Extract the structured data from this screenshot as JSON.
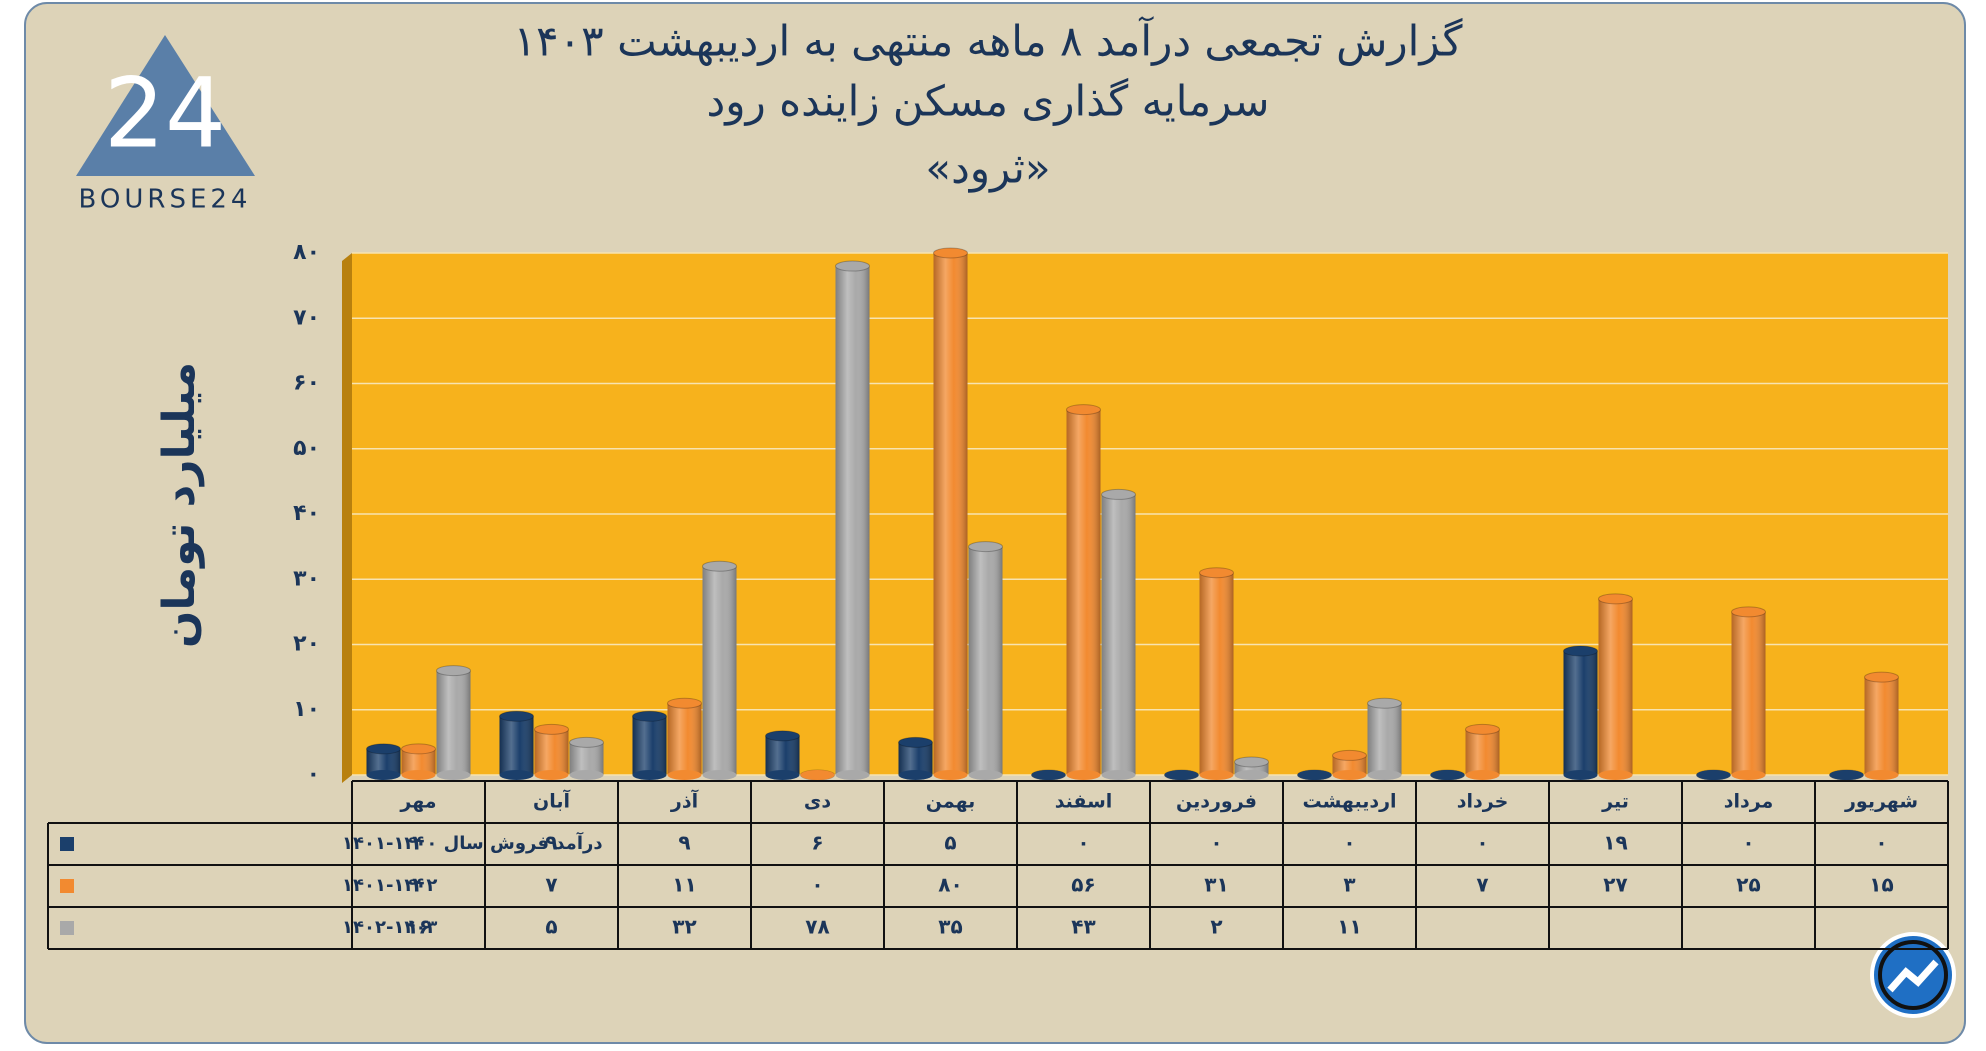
{
  "logo_text": "BOURSE24",
  "chart_data": {
    "type": "bar",
    "title": "گزارش تجمعی درآمد ۸ ماهه منتهی به اردیبهشت ۱۴۰۳",
    "subtitle": "سرمایه گذاری مسکن زاینده رود",
    "company": "«ثرود»",
    "y_label": "میلیارد تومان",
    "categories": [
      "مهر",
      "آبان",
      "آذر",
      "دی",
      "بهمن",
      "اسفند",
      "فروردین",
      "اردیبهشت",
      "خرداد",
      "تیر",
      "مرداد",
      "شهریور"
    ],
    "series": [
      {
        "name": "درآمد فروش سال ۱۴۰۰-۱۴۰۱",
        "color": "#1b3f6b",
        "values": [
          4,
          9,
          9,
          6,
          5,
          0,
          0,
          0,
          0,
          19,
          0,
          0
        ],
        "value_labels": [
          "۴",
          "۹",
          "۹",
          "۶",
          "۵",
          "۰",
          "۰",
          "۰",
          "۰",
          "۱۹",
          "۰",
          "۰"
        ]
      },
      {
        "name": "۱۴۰۱-۱۴۰۲",
        "color": "#f28a30",
        "values": [
          4,
          7,
          11,
          0,
          80,
          56,
          31,
          3,
          7,
          27,
          25,
          15
        ],
        "value_labels": [
          "۴",
          "۷",
          "۱۱",
          "۰",
          "۸۰",
          "۵۶",
          "۳۱",
          "۳",
          "۷",
          "۲۷",
          "۲۵",
          "۱۵"
        ]
      },
      {
        "name": "۱۴۰۲-۱۴۰۳",
        "color": "#a9a9a9",
        "values": [
          16,
          5,
          32,
          78,
          35,
          43,
          2,
          11,
          null,
          null,
          null,
          null
        ],
        "value_labels": [
          "۱۶",
          "۵",
          "۳۲",
          "۷۸",
          "۳۵",
          "۴۳",
          "۲",
          "۱۱",
          null,
          null,
          null,
          null
        ]
      }
    ],
    "ylim": [
      0,
      80
    ],
    "yticks": [
      {
        "value": 0,
        "label": "۰"
      },
      {
        "value": 10,
        "label": "۱۰"
      },
      {
        "value": 20,
        "label": "۲۰"
      },
      {
        "value": 30,
        "label": "۳۰"
      },
      {
        "value": 40,
        "label": "۴۰"
      },
      {
        "value": 50,
        "label": "۵۰"
      },
      {
        "value": 60,
        "label": "۶۰"
      },
      {
        "value": 70,
        "label": "۷۰"
      },
      {
        "value": 80,
        "label": "۸۰"
      }
    ],
    "grid": true,
    "plot_color": "#f7b21c"
  }
}
